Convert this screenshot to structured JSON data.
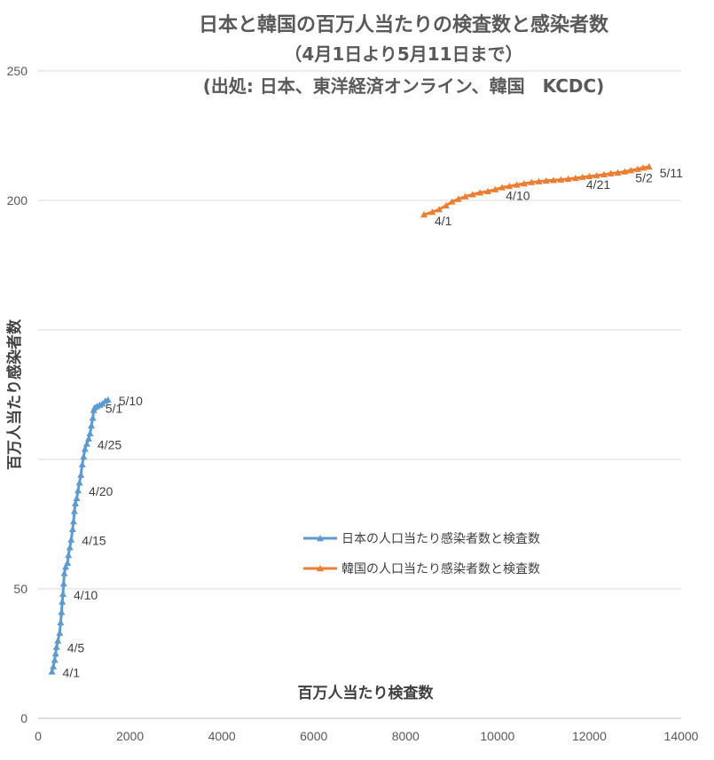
{
  "chart_data": {
    "type": "line",
    "title": "日本と韓国の百万人当たりの検査数と感染者数",
    "subtitle": "（4月1日より5月11日まで）",
    "source": "(出処: 日本、東洋経済オンライン、韓国　KCDC)",
    "xlabel": "百万人当たり検査数",
    "ylabel": "百万人当たり感染者数",
    "xlim": [
      0,
      14000
    ],
    "ylim": [
      0,
      250
    ],
    "xticks": [
      "0",
      "2000",
      "4000",
      "6000",
      "8000",
      "10000",
      "12000",
      "14000"
    ],
    "yticks": [
      "0",
      "50",
      "",
      "",
      "200",
      "250"
    ],
    "grid": "horizontal",
    "legend": "center-right",
    "series": [
      {
        "name": "日本の人口当たり感染者数と検査数",
        "color": "#5b9bd5",
        "points": [
          [
            300,
            18
          ],
          [
            330,
            20
          ],
          [
            360,
            22.5
          ],
          [
            380,
            25
          ],
          [
            400,
            27.5
          ],
          [
            430,
            30
          ],
          [
            470,
            33
          ],
          [
            490,
            37
          ],
          [
            510,
            41
          ],
          [
            525,
            45
          ],
          [
            540,
            48
          ],
          [
            555,
            52
          ],
          [
            570,
            56
          ],
          [
            600,
            58.5
          ],
          [
            640,
            60
          ],
          [
            660,
            63
          ],
          [
            690,
            66
          ],
          [
            720,
            69
          ],
          [
            750,
            73
          ],
          [
            770,
            76
          ],
          [
            790,
            80
          ],
          [
            810,
            83
          ],
          [
            840,
            85
          ],
          [
            870,
            88
          ],
          [
            900,
            91
          ],
          [
            930,
            94
          ],
          [
            960,
            98
          ],
          [
            990,
            101
          ],
          [
            1020,
            104
          ],
          [
            1060,
            106
          ],
          [
            1100,
            108
          ],
          [
            1130,
            110
          ],
          [
            1160,
            113
          ],
          [
            1190,
            116
          ],
          [
            1210,
            119
          ],
          [
            1230,
            120
          ],
          [
            1280,
            120.5
          ],
          [
            1340,
            121
          ],
          [
            1400,
            121.5
          ],
          [
            1460,
            122.5
          ],
          [
            1520,
            123
          ]
        ],
        "labels": [
          {
            "text": "4/1",
            "x": 300,
            "y": 18
          },
          {
            "text": "4/5",
            "x": 400,
            "y": 27.5
          },
          {
            "text": "4/10",
            "x": 540,
            "y": 48
          },
          {
            "text": "4/15",
            "x": 720,
            "y": 69
          },
          {
            "text": "4/20",
            "x": 870,
            "y": 88
          },
          {
            "text": "4/25",
            "x": 1060,
            "y": 106
          },
          {
            "text": "5/1",
            "x": 1230,
            "y": 120
          },
          {
            "text": "5/10",
            "x": 1520,
            "y": 123
          }
        ]
      },
      {
        "name": "韓国の人口当たり感染者数と検査数",
        "color": "#ed7d31",
        "points": [
          [
            8400,
            194.5
          ],
          [
            8580,
            195.5
          ],
          [
            8730,
            196.5
          ],
          [
            8880,
            198
          ],
          [
            9010,
            199.5
          ],
          [
            9150,
            200.5
          ],
          [
            9300,
            201.5
          ],
          [
            9460,
            202.3
          ],
          [
            9620,
            203
          ],
          [
            9790,
            203.5
          ],
          [
            9950,
            204.2
          ],
          [
            10100,
            205
          ],
          [
            10260,
            205.5
          ],
          [
            10420,
            206
          ],
          [
            10580,
            206.5
          ],
          [
            10740,
            207
          ],
          [
            10900,
            207.3
          ],
          [
            11060,
            207.6
          ],
          [
            11220,
            207.8
          ],
          [
            11380,
            208
          ],
          [
            11540,
            208.3
          ],
          [
            11700,
            208.6
          ],
          [
            11850,
            209
          ],
          [
            12000,
            209.3
          ],
          [
            12160,
            209.6
          ],
          [
            12320,
            210
          ],
          [
            12470,
            210.4
          ],
          [
            12620,
            210.7
          ],
          [
            12770,
            211.1
          ],
          [
            12900,
            211.6
          ],
          [
            13050,
            212.1
          ],
          [
            13170,
            212.6
          ],
          [
            13300,
            213
          ]
        ],
        "labels": [
          {
            "text": "4/1",
            "x": 8400,
            "y": 194.5
          },
          {
            "text": "4/10",
            "x": 9950,
            "y": 204.2
          },
          {
            "text": "4/21",
            "x": 11700,
            "y": 208.6
          },
          {
            "text": "5/2",
            "x": 12770,
            "y": 211.1
          },
          {
            "text": "5/11",
            "x": 13300,
            "y": 213
          }
        ]
      }
    ]
  }
}
